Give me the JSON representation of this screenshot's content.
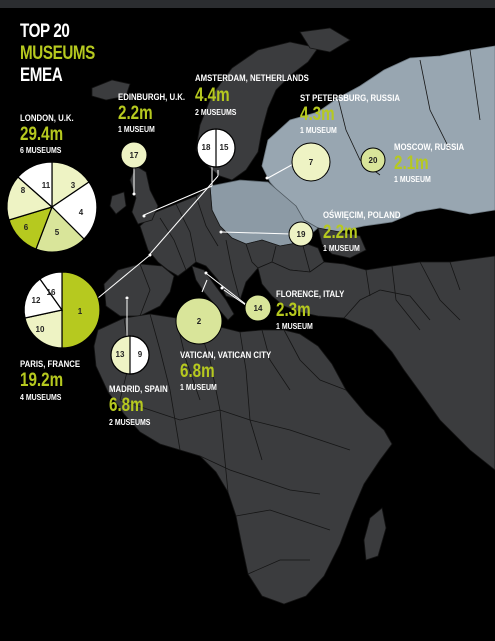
{
  "title": [
    "TOP 20",
    "MUSEUMS",
    "EMEA"
  ],
  "colors": {
    "accent": "#b6c91f",
    "land": "#3b3c3e",
    "russia": "#98a6b1",
    "pale": "#eef3c4",
    "mid": "#d9e59a",
    "white": "#ffffff"
  },
  "cities": [
    {
      "name": "LONDON, U.K.",
      "value": "29.4m",
      "count": "6 MUSEUMS",
      "ranks": [
        "11",
        "3",
        "4",
        "5",
        "6",
        "8"
      ]
    },
    {
      "name": "EDINBURGH, U.K.",
      "value": "2.2m",
      "count": "1 MUSEUM",
      "ranks": [
        "17"
      ]
    },
    {
      "name": "AMSTERDAM, NETHERLANDS",
      "value": "4.4m",
      "count": "2 MUSEUMS",
      "ranks": [
        "18",
        "15"
      ]
    },
    {
      "name": "ST PETERSBURG, RUSSIA",
      "value": "4.3m",
      "count": "1 MUSEUM",
      "ranks": [
        "7"
      ]
    },
    {
      "name": "MOSCOW, RUSSIA",
      "value": "2.1m",
      "count": "1 MUSEUM",
      "ranks": [
        "20"
      ]
    },
    {
      "name": "OŚWIĘCIM, POLAND",
      "value": "2.2m",
      "count": "1 MUSEUM",
      "ranks": [
        "19"
      ]
    },
    {
      "name": "FLORENCE, ITALY",
      "value": "2.3m",
      "count": "1 MUSEUM",
      "ranks": [
        "14"
      ]
    },
    {
      "name": "VATICAN, VATICAN CITY",
      "value": "6.8m",
      "count": "1 MUSEUM",
      "ranks": [
        "2"
      ]
    },
    {
      "name": "MADRID, SPAIN",
      "value": "6.8m",
      "count": "2 MUSEUMS",
      "ranks": [
        "13",
        "9"
      ]
    },
    {
      "name": "PARIS, FRANCE",
      "value": "19.2m",
      "count": "4 MUSEUMS",
      "ranks": [
        "16",
        "1",
        "10",
        "12"
      ]
    }
  ]
}
